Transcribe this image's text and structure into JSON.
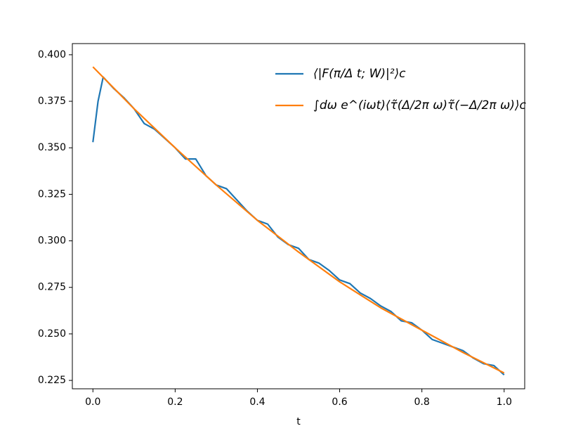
{
  "chart_data": {
    "type": "line",
    "xlabel": "t",
    "xlim": [
      -0.05,
      1.05
    ],
    "ylim": [
      0.2205,
      0.406
    ],
    "xticks": [
      {
        "value": 0,
        "label": "0.0"
      },
      0.2,
      0.4,
      0.6,
      0.8,
      {
        "value": 1,
        "label": "1.0"
      }
    ],
    "yticks": [
      0.225,
      {
        "value": 0.25,
        "label": "0.250"
      },
      0.275,
      {
        "value": 0.3,
        "label": "0.300"
      },
      0.325,
      {
        "value": 0.35,
        "label": "0.350"
      },
      0.375,
      {
        "value": 0.4,
        "label": "0.400"
      }
    ],
    "legend": "upper right",
    "series": [
      {
        "name": "⟨|F(π/Δ t; W)|²⟩c",
        "color": "#1f77b4",
        "x": [
          0,
          0.0125,
          0.025,
          0.05,
          0.075,
          0.1,
          0.125,
          0.15,
          0.175,
          0.2,
          0.225,
          0.25,
          0.275,
          0.3,
          0.325,
          0.35,
          0.375,
          0.4,
          0.425,
          0.45,
          0.475,
          0.5,
          0.525,
          0.55,
          0.575,
          0.6,
          0.625,
          0.65,
          0.675,
          0.7,
          0.725,
          0.75,
          0.775,
          0.8,
          0.825,
          0.85,
          0.875,
          0.9,
          0.925,
          0.95,
          0.975,
          1.0
        ],
        "values": [
          0.353,
          0.375,
          0.388,
          0.382,
          0.377,
          0.371,
          0.363,
          0.36,
          0.355,
          0.35,
          0.344,
          0.344,
          0.335,
          0.33,
          0.328,
          0.322,
          0.316,
          0.311,
          0.309,
          0.302,
          0.298,
          0.296,
          0.29,
          0.288,
          0.284,
          0.279,
          0.277,
          0.272,
          0.269,
          0.265,
          0.262,
          0.257,
          0.256,
          0.252,
          0.247,
          0.245,
          0.243,
          0.241,
          0.237,
          0.234,
          0.233,
          0.228
        ]
      },
      {
        "name": "∫dω e^(iωt)⟨τ̃(Δ/2π ω)τ̃(−Δ/2π ω)⟩c",
        "color": "#ff7f0e",
        "x": [
          0,
          0.1,
          0.2,
          0.3,
          0.4,
          0.5,
          0.6,
          0.7,
          0.8,
          0.9,
          1.0
        ],
        "values": [
          0.3935,
          0.371,
          0.35,
          0.33,
          0.311,
          0.294,
          0.278,
          0.264,
          0.252,
          0.24,
          0.229
        ]
      }
    ]
  }
}
